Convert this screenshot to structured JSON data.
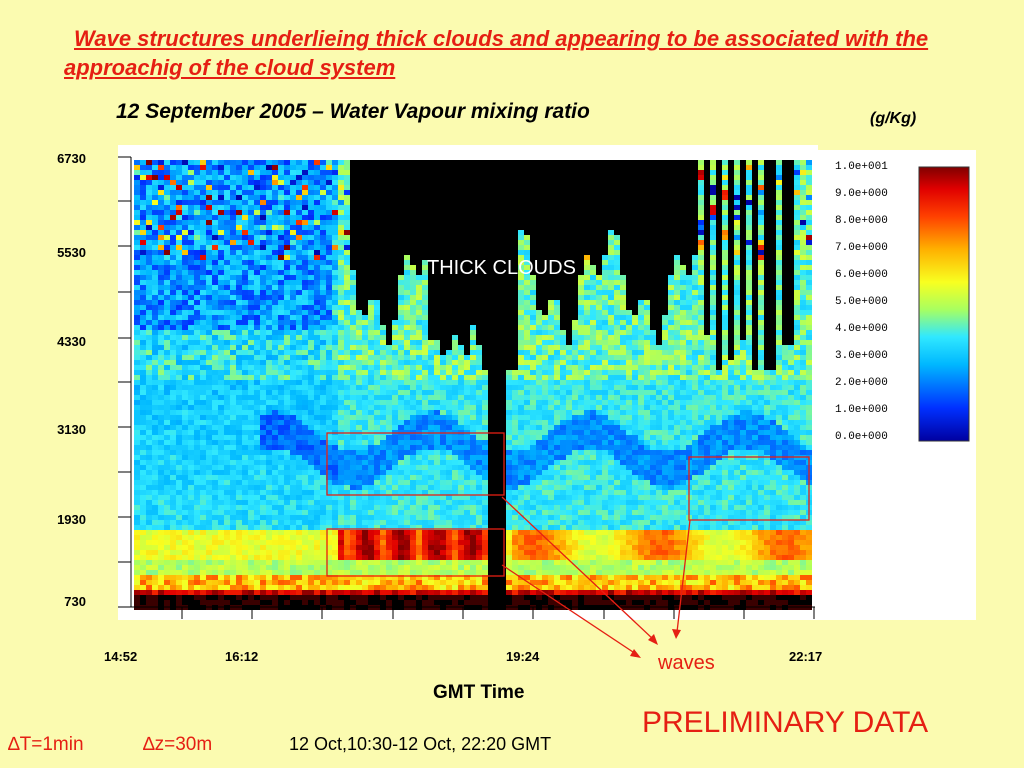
{
  "slide_title": "Wave structures underlieing thick clouds and appearing to be associated with the approachig of the cloud system",
  "chart_title": "12 September 2005 – Water Vapour mixing ratio",
  "unit_label": "(g/Kg)",
  "annotation_clouds": "THICK CLOUDS",
  "annotation_waves": "waves",
  "preliminary": "PRELIMINARY DATA",
  "footer": {
    "dt": "∆T=1min",
    "dz": "∆z=30m",
    "period": "12 Oct,10:30-12 Oct, 22:20 GMT"
  },
  "chart_data": {
    "type": "heatmap",
    "title": "12 September 2005 – Water Vapour mixing ratio",
    "xlabel": "GMT Time",
    "ylabel": "",
    "y_ticks": [
      "6730",
      "5530",
      "4330",
      "3130",
      "1930",
      "730"
    ],
    "y_tick_values": [
      6730,
      5530,
      4330,
      3130,
      1930,
      730
    ],
    "x_ticks": [
      "14:52",
      "16:12",
      "19:24",
      "22:17"
    ],
    "x_tick_minutes": [
      892,
      972,
      1164,
      1337
    ],
    "xlim_minutes": [
      892,
      1340
    ],
    "ylim": [
      730,
      6730
    ],
    "colorbar": {
      "unit": "(g/Kg)",
      "labels": [
        "1.0e+001",
        "9.0e+000",
        "8.0e+000",
        "7.0e+000",
        "6.0e+000",
        "5.0e+000",
        "4.0e+000",
        "3.0e+000",
        "2.0e+000",
        "1.0e+000",
        "0.0e+000"
      ],
      "min": 0,
      "max": 10
    },
    "annotations": [
      "THICK CLOUDS",
      "waves"
    ]
  }
}
